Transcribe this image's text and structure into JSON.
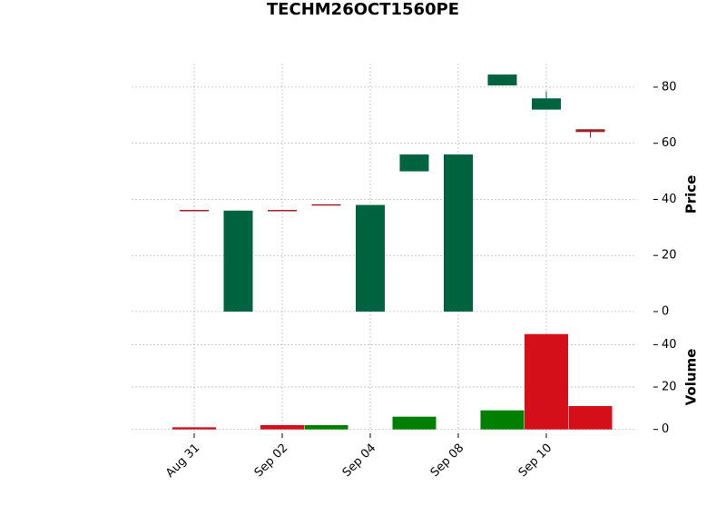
{
  "chart_data": {
    "type": "candlestick",
    "title": "TECHM26OCT1560PE",
    "categories": [
      "Aug 31",
      null,
      "Sep 02",
      null,
      "Sep 04",
      null,
      "Sep 08",
      null,
      "Sep 10",
      null
    ],
    "open": [
      36,
      0,
      36,
      38,
      0,
      50,
      0,
      80.6,
      72,
      65
    ],
    "high": [
      36,
      36,
      36,
      38,
      38,
      56,
      56,
      84.5,
      78.5,
      65
    ],
    "low": [
      36,
      0,
      36,
      38,
      0,
      50,
      0,
      80.6,
      72,
      62
    ],
    "close": [
      36,
      36,
      36,
      38,
      38,
      56,
      56,
      84.5,
      76,
      64
    ],
    "volume": [
      1,
      0,
      2,
      2,
      0,
      6,
      0,
      9,
      45,
      11
    ],
    "volume_colors": [
      "#d50f1a",
      "#007f00",
      "#d50f1a",
      "#007f00",
      "#007f00",
      "#007f00",
      "#007f00",
      "#007f00",
      "#d50f1a",
      "#d50f1a"
    ],
    "up_color": "#006340",
    "down_color": "#a02128",
    "ylabel": "Price",
    "volume_label": "Volume",
    "ylim": [
      -3.9,
      88.4
    ],
    "yticks": [
      0,
      20,
      40,
      60,
      80
    ],
    "volume_ylim": [
      -1,
      49.6
    ],
    "volume_yticks": [
      0,
      20,
      40
    ],
    "grid": true
  }
}
